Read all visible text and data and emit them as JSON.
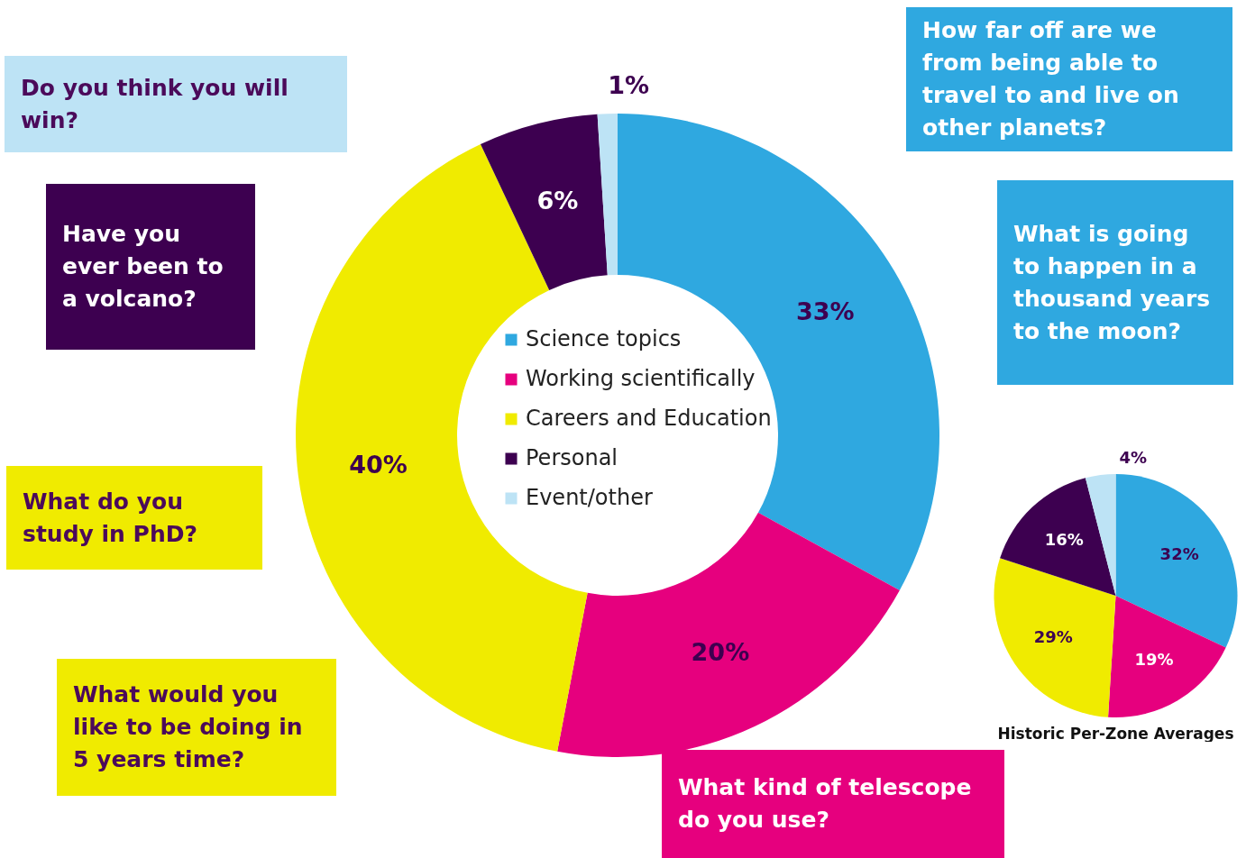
{
  "chart_data": [
    {
      "type": "donut",
      "categories": [
        "Science topics",
        "Working scientifically",
        "Careers and Education",
        "Personal",
        "Event/other"
      ],
      "values": [
        33,
        20,
        40,
        6,
        1
      ],
      "value_labels": [
        "33%",
        "20%",
        "40%",
        "6%",
        "1%"
      ],
      "colors": [
        "#2fa8e0",
        "#e6007e",
        "#f0eb00",
        "#3d0050",
        "#bde3f5"
      ],
      "legend": "center",
      "annotations": [
        "Do you think you will win?",
        "How far off are we from being able to travel to and live on other planets?",
        "Have you ever been to a volcano?",
        "What is going to happen in a thousand years to the moon?",
        "What do you study in PhD?",
        "What would you like to be doing in 5 years time?",
        "What kind of telescope do you use?"
      ]
    },
    {
      "type": "pie",
      "title": "Historic Per-Zone Averages",
      "categories": [
        null,
        null,
        null,
        null,
        null
      ],
      "values": [
        32,
        19,
        29,
        16,
        4
      ],
      "value_labels": [
        "32%",
        "19%",
        "29%",
        "16%",
        "4%"
      ],
      "colors": [
        "#2fa8e0",
        "#e6007e",
        "#f0eb00",
        "#3d0050",
        "#bde3f5"
      ]
    }
  ]
}
